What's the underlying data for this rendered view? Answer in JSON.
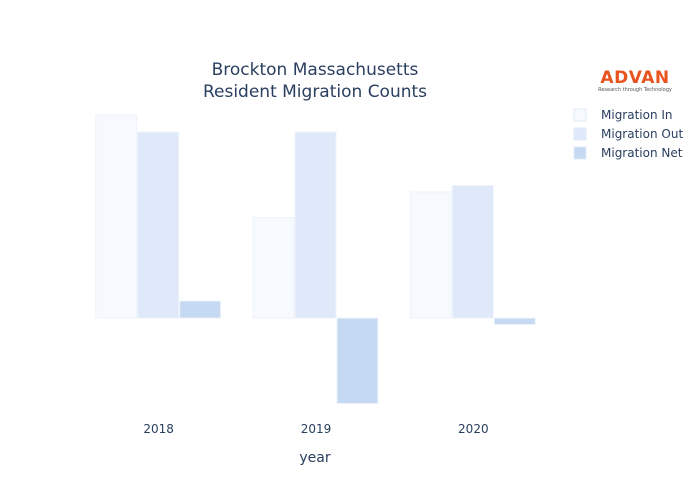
{
  "chart_data": {
    "type": "bar",
    "title": [
      "Brockton Massachusetts",
      "Resident Migration Counts"
    ],
    "xlabel": "year",
    "ylabel": "",
    "categories": [
      "2018",
      "2019",
      "2020"
    ],
    "series": [
      {
        "name": "Migration In",
        "values": [
          9500,
          4700,
          5900
        ],
        "color": "#f6f9fe"
      },
      {
        "name": "Migration Out",
        "values": [
          8700,
          8700,
          6200
        ],
        "color": "#dfe9f9"
      },
      {
        "name": "Migration Net",
        "values": [
          800,
          -4000,
          -300
        ],
        "color": "#c6d9f3"
      }
    ],
    "ylim": [
      -4300,
      10200
    ],
    "grid": false,
    "yticks_visible": false,
    "legend_position": "right"
  },
  "logo": {
    "name": "ADVAN",
    "tagline": "Research through Technology"
  }
}
